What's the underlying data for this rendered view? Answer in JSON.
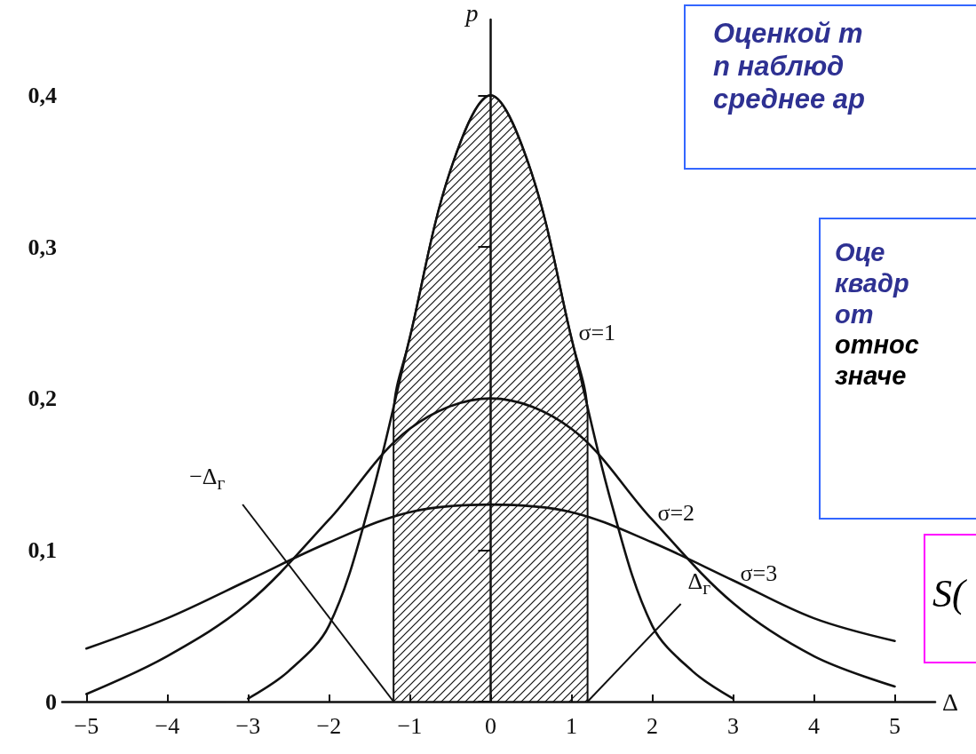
{
  "chart_data": {
    "type": "line",
    "xlabel": "Δ",
    "ylabel": "p",
    "xlim": [
      -5.3,
      5.5
    ],
    "xticks": [
      -5,
      -4,
      -3,
      -2,
      -1,
      0,
      1,
      2,
      3,
      4,
      5
    ],
    "ylim": [
      0,
      0.45
    ],
    "yticks": [
      0,
      {
        "value": 0.1,
        "label": "0,1"
      },
      {
        "value": 0.2,
        "label": "0,2"
      },
      {
        "value": 0.3,
        "label": "0,3"
      },
      {
        "value": 0.4,
        "label": "0,4"
      }
    ],
    "marker": "none",
    "line_style": "solid",
    "series": [
      {
        "name": "σ=1",
        "color": "#111111",
        "x": [
          -3,
          -2.5,
          -2,
          -1.5,
          -1,
          -0.5,
          0,
          0.5,
          1,
          1.5,
          2,
          2.5,
          3
        ],
        "values": [
          0.002,
          0.02,
          0.05,
          0.13,
          0.24,
          0.35,
          0.4,
          0.35,
          0.24,
          0.13,
          0.05,
          0.02,
          0.002
        ]
      },
      {
        "name": "σ=2",
        "color": "#111111",
        "x": [
          -5,
          -4,
          -3,
          -2,
          -1,
          0,
          1,
          2,
          3,
          4,
          5
        ],
        "values": [
          0.005,
          0.03,
          0.065,
          0.12,
          0.18,
          0.2,
          0.18,
          0.12,
          0.065,
          0.03,
          0.01
        ]
      },
      {
        "name": "σ=3",
        "color": "#111111",
        "x": [
          -5,
          -4,
          -3,
          -2,
          -1,
          0,
          1,
          2,
          3,
          4,
          5
        ],
        "values": [
          0.035,
          0.055,
          0.08,
          0.105,
          0.125,
          0.13,
          0.125,
          0.105,
          0.08,
          0.055,
          0.04
        ]
      },
      {
        "type": "area",
        "color": "#111111",
        "x": [
          -1.2,
          -1.2,
          -1,
          -0.5,
          0,
          0.5,
          1,
          1.2,
          1.2
        ],
        "values": [
          0,
          0.19,
          0.24,
          0.35,
          0.4,
          0.35,
          0.24,
          0.19,
          0
        ]
      }
    ],
    "annotations": [
      {
        "text": "−Δ$_{г}$",
        "x": -1.2,
        "y": 0
      },
      {
        "text": "Δ$_{г}$",
        "x": 1.2,
        "y": 0
      },
      "Оценкой  m\nn  наблюд\nсреднее ар",
      "Оце\nквадр\nот\nотнос\nзначе",
      "S("
    ]
  }
}
